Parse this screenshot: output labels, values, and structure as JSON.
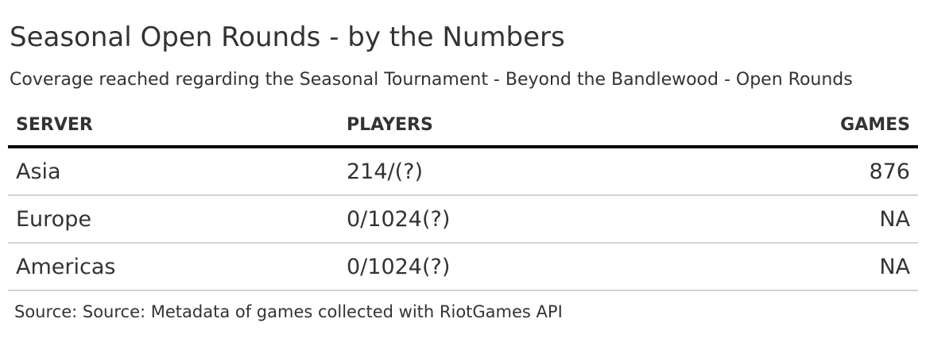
{
  "header": {
    "title": "Seasonal Open Rounds - by the Numbers",
    "subtitle": "Coverage reached regarding the Seasonal Tournament - Beyond the Bandlewood - Open Rounds"
  },
  "table": {
    "columns": [
      "SERVER",
      "PLAYERS",
      "GAMES"
    ],
    "rows": [
      {
        "server": "Asia",
        "players": "214/(?)",
        "games": "876"
      },
      {
        "server": "Europe",
        "players": "0/1024(?)",
        "games": "NA"
      },
      {
        "server": "Americas",
        "players": "0/1024(?)",
        "games": "NA"
      }
    ]
  },
  "footer": {
    "source": "Source: Source: Metadata of games collected with RiotGames API"
  }
}
